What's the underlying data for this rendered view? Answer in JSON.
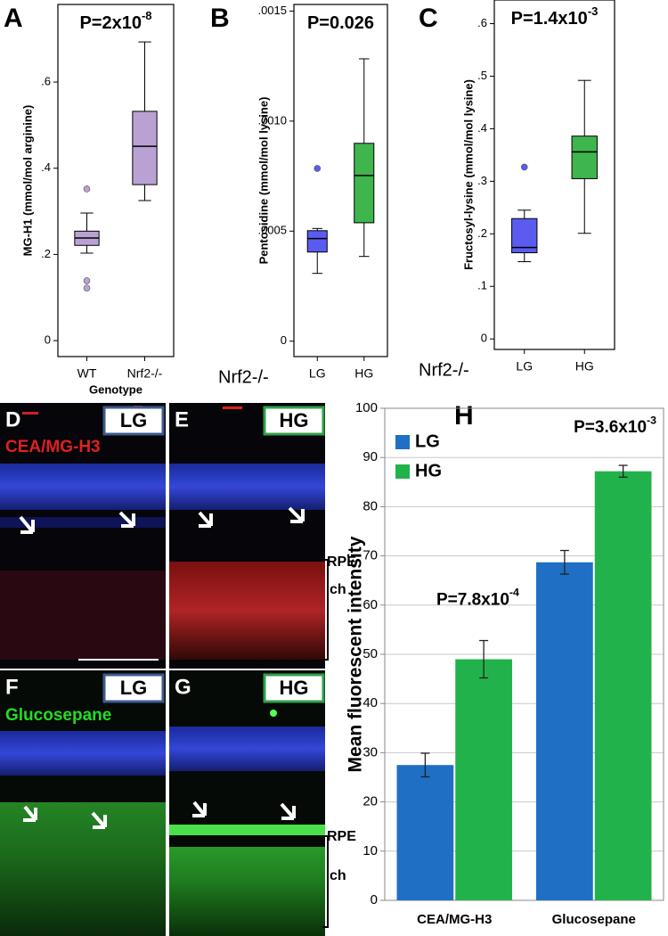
{
  "chart_data": [
    {
      "type": "box",
      "panel": "A",
      "title": "P=2x10",
      "title_superscript": "-8",
      "ylabel": "MG-H1 (mmol/mol arginine)",
      "xlabel": "Genotype",
      "categories": [
        "WT",
        "Nrf2-/-"
      ],
      "colors": [
        "#b9a2d3",
        "#b9a2d3"
      ],
      "boxes": [
        {
          "min": 0.203,
          "q1": 0.221,
          "median": 0.238,
          "q3": 0.254,
          "max": 0.296,
          "outliers": [
            0.352,
            0.139,
            0.122
          ]
        },
        {
          "min": 0.325,
          "q1": 0.362,
          "median": 0.451,
          "q3": 0.532,
          "max": 0.693,
          "outliers": []
        }
      ],
      "ylim": [
        -0.037,
        0.78
      ],
      "yticks": [
        0,
        {
          "value": 0.2,
          "label": ".2"
        },
        {
          "value": 0.4,
          "label": ".4"
        },
        {
          "value": 0.6,
          "label": ".6"
        }
      ]
    },
    {
      "type": "box",
      "panel": "B",
      "title": "P=0.026",
      "ylabel": "Pentosidine (mmol/mol lysine)",
      "row_label": "Nrf2-/-",
      "categories": [
        "LG",
        "HG"
      ],
      "colors": [
        "#5a5cf0",
        "#3fb54d"
      ],
      "boxes": [
        {
          "min": 0.000308,
          "q1": 0.000405,
          "median": 0.000466,
          "q3": 0.000502,
          "max": 0.000512,
          "outliers": [
            0.000785
          ]
        },
        {
          "min": 0.000385,
          "q1": 0.000538,
          "median": 0.000753,
          "q3": 0.000899,
          "max": 0.001283,
          "outliers": []
        }
      ],
      "ylim": [
        -7e-05,
        0.00153
      ],
      "yticks": [
        0,
        {
          "value": 0.0005,
          "label": ".0005"
        },
        {
          "value": 0.001,
          "label": ".0010"
        },
        {
          "value": 0.0015,
          "label": ".0015"
        }
      ]
    },
    {
      "type": "box",
      "panel": "C",
      "title": "P=1.4x10",
      "title_superscript": "-3",
      "ylabel": "Fructosyl-lysine (mmol/mol lysine)",
      "row_label": "Nrf2-/-",
      "categories": [
        "LG",
        "HG"
      ],
      "colors": [
        "#5a5cf0",
        "#3fb54d"
      ],
      "boxes": [
        {
          "min": 0.147,
          "q1": 0.164,
          "median": 0.174,
          "q3": 0.229,
          "max": 0.245,
          "outliers": [
            0.327
          ]
        },
        {
          "min": 0.201,
          "q1": 0.305,
          "median": 0.356,
          "q3": 0.386,
          "max": 0.492,
          "outliers": []
        }
      ],
      "ylim": [
        -0.02,
        0.645
      ],
      "yticks": [
        0,
        {
          "value": 0.1,
          "label": ".1"
        },
        {
          "value": 0.2,
          "label": ".2"
        },
        {
          "value": 0.3,
          "label": ".3"
        },
        {
          "value": 0.4,
          "label": ".4"
        },
        {
          "value": 0.5,
          "label": ".5"
        },
        {
          "value": 0.6,
          "label": ".6"
        }
      ]
    },
    {
      "type": "bar",
      "panel": "H",
      "ylabel": "Mean fluorescent intensity",
      "categories": [
        "CEA/MG-H3",
        "Glucosepane"
      ],
      "series": [
        {
          "name": "LG",
          "color": "#1f6fc4",
          "values": [
            27.5,
            68.7
          ],
          "errors": [
            2.4,
            2.4
          ]
        },
        {
          "name": "HG",
          "color": "#22b24c",
          "values": [
            49,
            87.2
          ],
          "errors": [
            3.8,
            1.2
          ]
        }
      ],
      "annotations": [
        {
          "text": "P=7.8x10",
          "superscript": "-4"
        },
        {
          "text": "P=3.6x10",
          "superscript": "-3"
        }
      ],
      "ylim": [
        0,
        100
      ],
      "yticks": [
        0,
        10,
        20,
        30,
        40,
        50,
        60,
        70,
        80,
        90,
        100
      ],
      "grid": true,
      "legend": "upper left"
    }
  ],
  "images": {
    "panels": [
      {
        "letter": "D",
        "group": "LG",
        "stain": "CEA/MG-H3"
      },
      {
        "letter": "E",
        "group": "HG"
      },
      {
        "letter": "F",
        "group": "LG",
        "stain": "Glucosepane"
      },
      {
        "letter": "G",
        "group": "HG"
      }
    ],
    "layer_labels": [
      [
        "RPE",
        "ch"
      ],
      [
        "RPE",
        "ch"
      ]
    ]
  }
}
